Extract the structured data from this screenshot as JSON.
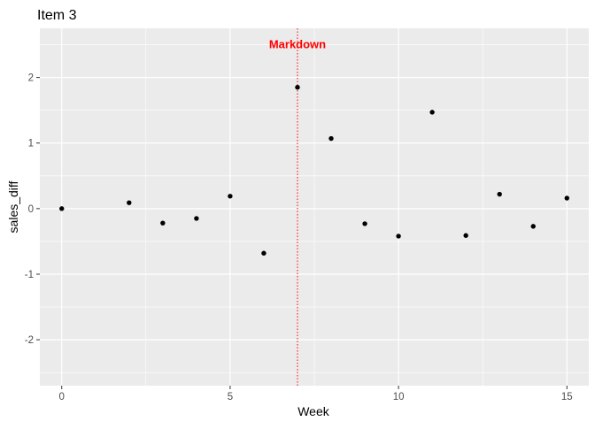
{
  "chart_data": {
    "type": "scatter",
    "title": "Item 3",
    "xlabel": "Week",
    "ylabel": "sales_diff",
    "xlim": [
      -0.65,
      15.65
    ],
    "ylim": [
      -2.7,
      2.75
    ],
    "x_ticks": [
      0,
      5,
      10,
      15
    ],
    "y_ticks": [
      -2,
      -1,
      0,
      1,
      2
    ],
    "grid": true,
    "legend": "none",
    "series": [
      {
        "points": [
          {
            "x": 0,
            "y": 0.0
          },
          {
            "x": 2,
            "y": 0.09
          },
          {
            "x": 3,
            "y": -0.22
          },
          {
            "x": 4,
            "y": -0.15
          },
          {
            "x": 5,
            "y": 0.19
          },
          {
            "x": 6,
            "y": -0.68
          },
          {
            "x": 7,
            "y": 1.85
          },
          {
            "x": 8,
            "y": 1.07
          },
          {
            "x": 9,
            "y": -0.23
          },
          {
            "x": 10,
            "y": -0.42
          },
          {
            "x": 11,
            "y": 1.47
          },
          {
            "x": 12,
            "y": -0.41
          },
          {
            "x": 13,
            "y": 0.22
          },
          {
            "x": 14,
            "y": -0.27
          },
          {
            "x": 15,
            "y": 0.16
          }
        ]
      }
    ],
    "annotations": [
      {
        "type": "vline",
        "x": 7,
        "style": "dotted",
        "color": "#ff0000"
      },
      {
        "type": "text",
        "text": "Markdown",
        "x": 7,
        "y": 2.5,
        "color": "#ff0000"
      }
    ]
  },
  "colors": {
    "panel_background": "#ebebeb",
    "grid_major": "#ffffff",
    "point": "#000000",
    "tick_text": "#4d4d4d",
    "annotation": "#ff0000"
  }
}
